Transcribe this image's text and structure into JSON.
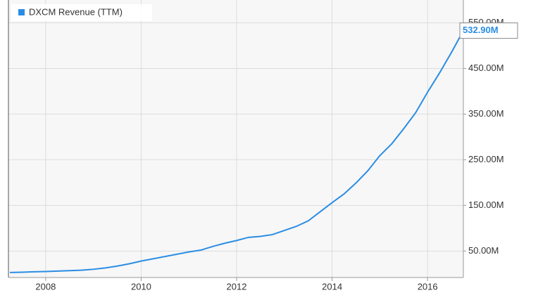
{
  "chart_data": {
    "type": "line",
    "x": [
      2007.25,
      2007.5,
      2007.75,
      2008.0,
      2008.25,
      2008.5,
      2008.75,
      2009.0,
      2009.25,
      2009.5,
      2009.75,
      2010.0,
      2010.25,
      2010.5,
      2010.75,
      2011.0,
      2011.25,
      2011.5,
      2011.75,
      2012.0,
      2012.25,
      2012.5,
      2012.75,
      2013.0,
      2013.25,
      2013.5,
      2013.75,
      2014.0,
      2014.25,
      2014.5,
      2014.75,
      2015.0,
      2015.25,
      2015.5,
      2015.75,
      2016.0,
      2016.25,
      2016.5,
      2016.75
    ],
    "series": [
      {
        "name": "DXCM Revenue (TTM)",
        "color": "#2a8de4",
        "values": [
          3,
          3.5,
          4.5,
          5,
          6,
          7,
          8,
          10,
          13,
          17,
          22,
          28,
          33,
          38,
          43,
          48,
          52,
          60,
          67,
          73,
          80,
          82,
          86,
          95,
          104,
          116,
          136,
          156,
          175,
          199,
          226,
          259,
          285,
          318,
          353,
          398,
          440,
          485,
          532.9
        ],
        "value_labels": [
          null,
          null,
          null,
          null,
          null,
          null,
          null,
          null,
          null,
          null,
          null,
          null,
          null,
          null,
          null,
          null,
          null,
          null,
          null,
          null,
          null,
          null,
          null,
          null,
          null,
          null,
          null,
          null,
          null,
          null,
          null,
          null,
          null,
          null,
          null,
          null,
          null,
          null,
          "532.90M"
        ]
      }
    ],
    "xlim": [
      2007.22,
      2016.75
    ],
    "xticks": [
      2008,
      2010,
      2012,
      2014,
      2016
    ],
    "ylim": [
      -8,
      600
    ],
    "yticks": [
      {
        "value": 50,
        "label": "50.00M"
      },
      {
        "value": 150,
        "label": "150.00M"
      },
      {
        "value": 250,
        "label": "250.00M"
      },
      {
        "value": 350,
        "label": "350.00M"
      },
      {
        "value": 450,
        "label": "450.00M"
      },
      {
        "value": 550,
        "label": "550.00M"
      }
    ],
    "grid": true,
    "legend": "top-left"
  }
}
